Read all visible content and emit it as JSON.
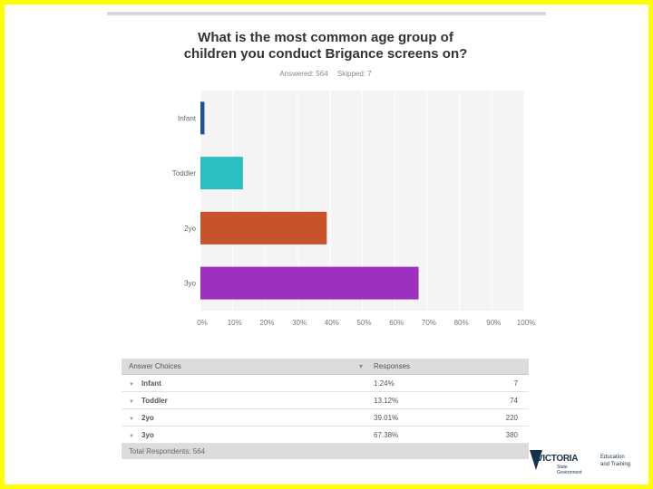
{
  "title_lines": [
    "What is the most common age group of",
    "children you conduct Brigance screens on?"
  ],
  "meta": {
    "answered": "Answered: 564",
    "skipped": "Skipped: 7"
  },
  "chart_data": {
    "type": "bar",
    "orientation": "horizontal",
    "categories": [
      "Infant",
      "Toddler",
      "2yo",
      "3yo"
    ],
    "values": [
      1.24,
      13.12,
      39.01,
      67.38
    ],
    "colors": [
      "#1f4fa3",
      "#2bbfbf",
      "#c8532b",
      "#9c2fbf"
    ],
    "xlim": [
      0,
      100
    ],
    "x_ticks": [
      "0%",
      "10%",
      "20%",
      "30%",
      "40%",
      "50%",
      "60%",
      "70%",
      "80%",
      "90%",
      "100%"
    ],
    "grid": true
  },
  "table": {
    "headers": {
      "choice": "Answer Choices",
      "responses": "Responses"
    },
    "rows": [
      {
        "choice": "Infant",
        "pct": "1.24%",
        "count": "7"
      },
      {
        "choice": "Toddler",
        "pct": "13.12%",
        "count": "74"
      },
      {
        "choice": "2yo",
        "pct": "39.01%",
        "count": "220"
      },
      {
        "choice": "3yo",
        "pct": "67.38%",
        "count": "380"
      }
    ],
    "footer": "Total Respondents: 564"
  },
  "logo": {
    "name": "VICTORIA",
    "sub1": "State",
    "sub2": "Government",
    "dept1": "Education",
    "dept2": "and Training"
  }
}
